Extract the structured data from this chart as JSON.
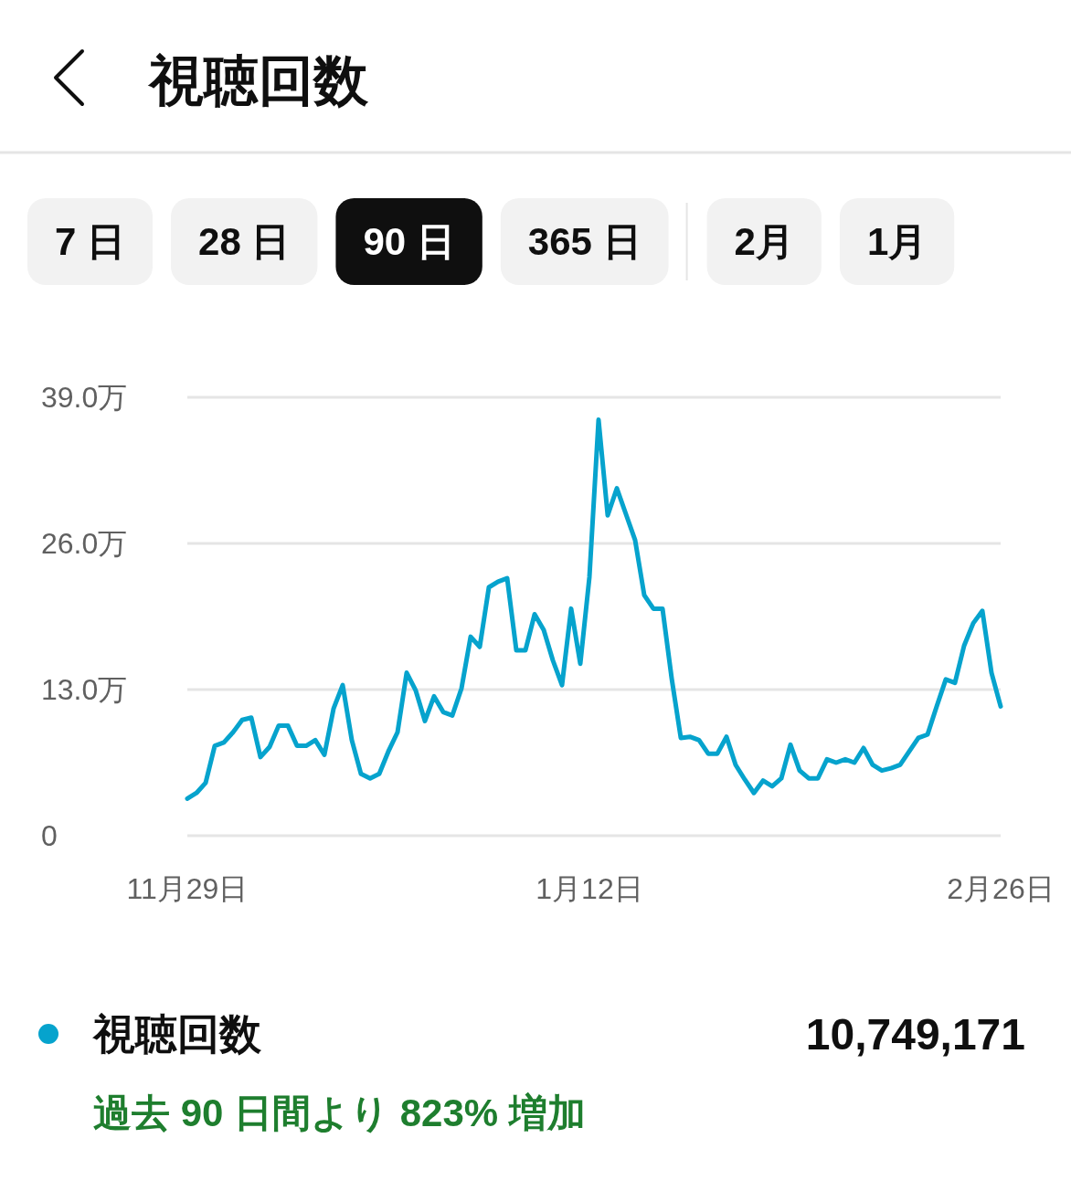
{
  "chart_data": {
    "type": "line",
    "title": "視聴回数",
    "categories": [
      "11月29日",
      null,
      null,
      null,
      null,
      null,
      null,
      null,
      null,
      null,
      null,
      null,
      null,
      null,
      null,
      null,
      null,
      null,
      null,
      null,
      null,
      null,
      null,
      null,
      null,
      null,
      null,
      null,
      null,
      null,
      null,
      null,
      null,
      null,
      null,
      null,
      null,
      null,
      null,
      null,
      null,
      null,
      null,
      null,
      "1月12日",
      null,
      null,
      null,
      null,
      null,
      null,
      null,
      null,
      null,
      null,
      null,
      null,
      null,
      null,
      null,
      null,
      null,
      null,
      null,
      null,
      null,
      null,
      null,
      null,
      null,
      null,
      null,
      null,
      null,
      null,
      null,
      null,
      null,
      null,
      null,
      null,
      null,
      null,
      null,
      null,
      null,
      null,
      null,
      null,
      "2月26日"
    ],
    "series": [
      {
        "name": "視聴回数",
        "color": "#06a3cd",
        "values": [
          3.3,
          3.8,
          4.7,
          8.0,
          8.3,
          9.2,
          10.3,
          10.5,
          7.0,
          7.9,
          9.8,
          9.8,
          8.0,
          8.0,
          8.5,
          7.2,
          11.3,
          13.4,
          8.5,
          5.5,
          5.1,
          5.5,
          7.5,
          9.2,
          14.5,
          12.9,
          10.2,
          12.4,
          11.0,
          10.7,
          13.1,
          17.7,
          16.8,
          22.1,
          22.6,
          22.9,
          16.5,
          16.5,
          19.7,
          18.3,
          15.6,
          13.4,
          20.2,
          15.3,
          23.0,
          37.0,
          28.5,
          30.9,
          28.6,
          26.3,
          21.4,
          20.2,
          20.2,
          14.0,
          8.7,
          8.8,
          8.5,
          7.3,
          7.3,
          8.8,
          6.3,
          5.0,
          3.8,
          4.9,
          4.4,
          5.1,
          8.1,
          5.8,
          5.1,
          5.1,
          6.8,
          6.5,
          6.8,
          6.5,
          7.8,
          6.3,
          5.8,
          6.0,
          6.3,
          7.5,
          8.7,
          9.0,
          11.5,
          13.9,
          13.6,
          16.9,
          18.9,
          20.0,
          14.5,
          11.5
        ]
      }
    ],
    "ylim": [
      0,
      39
    ],
    "yticks": [
      {
        "value": 0,
        "label": "0"
      },
      {
        "value": 13,
        "label": "13.0万"
      },
      {
        "value": 26,
        "label": "26.0万"
      },
      {
        "value": 39,
        "label": "39.0万"
      }
    ],
    "grid": "y",
    "legend": "bottom",
    "annotations": [
      "7 日",
      "28 日",
      "90 日",
      "365 日",
      "2月",
      "1月",
      "10,749,171",
      "過去 90 日間より 823% 増加"
    ]
  }
}
